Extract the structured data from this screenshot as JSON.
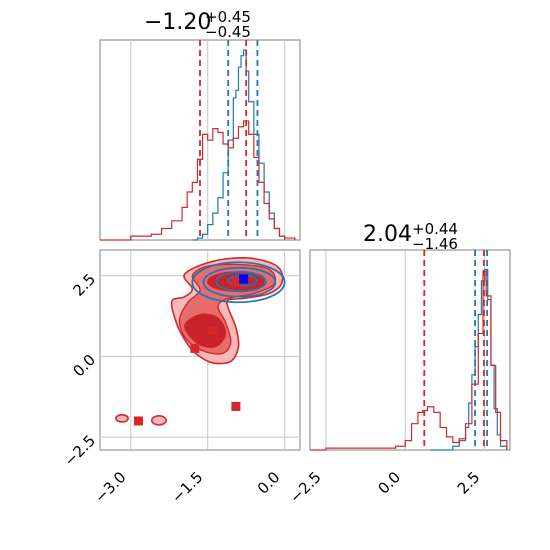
{
  "chart_data": [
    {
      "type": "histogram",
      "panel": "x-marginal",
      "title": {
        "value": "−1.20",
        "upper": "+0.45",
        "lower": "−0.45"
      },
      "xlim": [
        -3.6,
        0.3
      ],
      "series": [
        {
          "name": "",
          "color": "#1f77b4",
          "quantiles": [
            -1.1,
            -0.53
          ],
          "points": [
            [
              -1.8,
              0.0
            ],
            [
              -1.7,
              0.01
            ],
            [
              -1.6,
              0.03
            ],
            [
              -1.5,
              0.08
            ],
            [
              -1.4,
              0.14
            ],
            [
              -1.3,
              0.22
            ],
            [
              -1.2,
              0.35
            ],
            [
              -1.1,
              0.52
            ],
            [
              -1.0,
              0.74
            ],
            [
              -0.95,
              0.78
            ],
            [
              -0.9,
              0.9
            ],
            [
              -0.85,
              0.96
            ],
            [
              -0.8,
              0.99
            ],
            [
              -0.75,
              0.88
            ],
            [
              -0.7,
              0.72
            ],
            [
              -0.6,
              0.55
            ],
            [
              -0.5,
              0.4
            ],
            [
              -0.4,
              0.25
            ],
            [
              -0.3,
              0.14
            ],
            [
              -0.2,
              0.06
            ],
            [
              -0.1,
              0.02
            ],
            [
              0.0,
              0.0
            ]
          ]
        },
        {
          "name": "",
          "color": "#d62728",
          "quantiles": [
            -1.65,
            -0.75
          ],
          "points": [
            [
              -3.6,
              0.0
            ],
            [
              -3.0,
              0.02
            ],
            [
              -2.6,
              0.03
            ],
            [
              -2.4,
              0.06
            ],
            [
              -2.2,
              0.1
            ],
            [
              -2.0,
              0.17
            ],
            [
              -1.9,
              0.25
            ],
            [
              -1.8,
              0.3
            ],
            [
              -1.7,
              0.42
            ],
            [
              -1.6,
              0.55
            ],
            [
              -1.5,
              0.52
            ],
            [
              -1.4,
              0.58
            ],
            [
              -1.3,
              0.56
            ],
            [
              -1.2,
              0.5
            ],
            [
              -1.1,
              0.48
            ],
            [
              -1.0,
              0.53
            ],
            [
              -0.9,
              0.59
            ],
            [
              -0.8,
              0.62
            ],
            [
              -0.7,
              0.55
            ],
            [
              -0.6,
              0.43
            ],
            [
              -0.5,
              0.3
            ],
            [
              -0.4,
              0.19
            ],
            [
              -0.3,
              0.11
            ],
            [
              -0.2,
              0.06
            ],
            [
              -0.1,
              0.02
            ],
            [
              0.0,
              0.01
            ],
            [
              0.2,
              0.0
            ]
          ]
        }
      ]
    },
    {
      "type": "histogram",
      "panel": "y-marginal",
      "title": {
        "value": "2.04",
        "upper": "+0.44",
        "lower": "−1.46"
      },
      "xlim": [
        -3.0,
        3.3
      ],
      "xticks": [
        "−2.5",
        "0.0",
        "2.5"
      ],
      "series": [
        {
          "name": "",
          "color": "#1f77b4",
          "quantiles": [
            2.2,
            2.58
          ],
          "points": [
            [
              0.8,
              0.0
            ],
            [
              1.2,
              0.0
            ],
            [
              1.5,
              0.02
            ],
            [
              1.7,
              0.05
            ],
            [
              1.9,
              0.12
            ],
            [
              2.0,
              0.25
            ],
            [
              2.1,
              0.4
            ],
            [
              2.2,
              0.55
            ],
            [
              2.3,
              0.72
            ],
            [
              2.4,
              0.9
            ],
            [
              2.5,
              0.96
            ],
            [
              2.6,
              0.8
            ],
            [
              2.7,
              0.45
            ],
            [
              2.8,
              0.22
            ],
            [
              2.9,
              0.08
            ],
            [
              3.0,
              0.02
            ],
            [
              3.2,
              0.0
            ]
          ]
        },
        {
          "name": "",
          "color": "#d62728",
          "quantiles": [
            0.6,
            2.48
          ],
          "points": [
            [
              -3.0,
              0.0
            ],
            [
              -2.5,
              0.01
            ],
            [
              -1.0,
              0.01
            ],
            [
              -0.3,
              0.02
            ],
            [
              0.0,
              0.05
            ],
            [
              0.2,
              0.14
            ],
            [
              0.4,
              0.2
            ],
            [
              0.55,
              0.21
            ],
            [
              0.7,
              0.23
            ],
            [
              0.9,
              0.2
            ],
            [
              1.1,
              0.12
            ],
            [
              1.3,
              0.07
            ],
            [
              1.5,
              0.04
            ],
            [
              1.7,
              0.06
            ],
            [
              1.9,
              0.14
            ],
            [
              2.1,
              0.35
            ],
            [
              2.3,
              0.62
            ],
            [
              2.45,
              0.95
            ],
            [
              2.55,
              0.82
            ],
            [
              2.7,
              0.45
            ],
            [
              2.85,
              0.2
            ],
            [
              3.0,
              0.05
            ],
            [
              3.2,
              0.0
            ]
          ]
        }
      ]
    },
    {
      "type": "contour",
      "panel": "joint",
      "xlim": [
        -3.6,
        0.3
      ],
      "ylim": [
        -2.9,
        3.3
      ],
      "xticks": [
        "−3.0",
        "−1.5",
        "0.0"
      ],
      "yticks": [
        "−2.5",
        "0.0",
        "2.5"
      ],
      "blue_levels": [
        {
          "cx": -0.9,
          "cy": 2.3,
          "rx": 0.9,
          "ry": 0.62
        },
        {
          "cx": -0.88,
          "cy": 2.3,
          "rx": 0.7,
          "ry": 0.45
        },
        {
          "cx": -0.85,
          "cy": 2.32,
          "rx": 0.48,
          "ry": 0.3
        },
        {
          "cx": -0.82,
          "cy": 2.35,
          "rx": 0.28,
          "ry": 0.16
        }
      ],
      "red_outer": [
        [
          -2.2,
          1.7
        ],
        [
          -2.1,
          1.0
        ],
        [
          -1.9,
          0.4
        ],
        [
          -1.7,
          0.05
        ],
        [
          -1.4,
          -0.2
        ],
        [
          -1.05,
          -0.15
        ],
        [
          -0.9,
          0.3
        ],
        [
          -0.95,
          0.9
        ],
        [
          -1.1,
          1.5
        ],
        [
          -1.1,
          1.75
        ],
        [
          -0.8,
          1.8
        ],
        [
          -0.3,
          1.95
        ],
        [
          -0.05,
          2.3
        ],
        [
          -0.15,
          2.8
        ],
        [
          -0.7,
          3.05
        ],
        [
          -1.4,
          2.95
        ],
        [
          -1.95,
          2.55
        ],
        [
          -1.8,
          2.1
        ],
        [
          -1.95,
          1.85
        ]
      ],
      "red_middle": [
        [
          -2.05,
          1.1
        ],
        [
          -1.9,
          0.5
        ],
        [
          -1.55,
          0.15
        ],
        [
          -1.2,
          0.1
        ],
        [
          -1.05,
          0.45
        ],
        [
          -1.15,
          1.05
        ],
        [
          -1.3,
          1.55
        ],
        [
          -1.1,
          1.8
        ],
        [
          -0.6,
          1.95
        ],
        [
          -0.2,
          2.25
        ],
        [
          -0.3,
          2.7
        ],
        [
          -0.85,
          2.85
        ],
        [
          -1.5,
          2.8
        ],
        [
          -1.8,
          2.5
        ],
        [
          -1.65,
          2.05
        ],
        [
          -1.9,
          1.65
        ]
      ],
      "red_inner": [
        [
          -1.95,
          0.95
        ],
        [
          -1.7,
          0.4
        ],
        [
          -1.35,
          0.3
        ],
        [
          -1.15,
          0.7
        ],
        [
          -1.3,
          1.2
        ],
        [
          -1.65,
          1.3
        ]
      ],
      "red_core": {
        "cx": -0.95,
        "cy": 2.32,
        "rx": 0.55,
        "ry": 0.3
      },
      "red_islands": [
        {
          "cx": -3.17,
          "cy": -1.92,
          "rx": 0.12,
          "ry": 0.11
        },
        {
          "cx": -2.45,
          "cy": -1.98,
          "rx": 0.14,
          "ry": 0.14
        }
      ],
      "red_markers": [
        [
          -0.95,
          2.3
        ],
        [
          -1.4,
          0.8
        ],
        [
          -1.75,
          0.25
        ],
        [
          -0.95,
          -1.55
        ],
        [
          -2.85,
          -2.0
        ]
      ],
      "blue_markers": [
        [
          -0.8,
          2.4
        ]
      ],
      "colors": {
        "red": "#d62728",
        "blue": "#1f77b4",
        "red_fill_light": "#f4b9b9",
        "red_fill_mid": "#e76d6d",
        "red_fill_dark": "#c8232c"
      }
    }
  ]
}
